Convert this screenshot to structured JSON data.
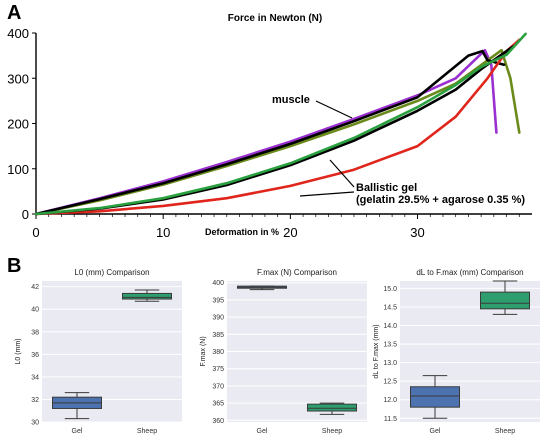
{
  "panels": {
    "a": "A",
    "b": "B"
  },
  "chart_data": [
    {
      "type": "line",
      "title": "Force in Newton (N)",
      "xlabel": "Deformation in %",
      "ylabel": "",
      "xlim": [
        0,
        39
      ],
      "ylim": [
        0,
        400
      ],
      "xticks": [
        0,
        10,
        20,
        30
      ],
      "yticks": [
        0,
        100,
        200,
        300,
        400
      ],
      "grid": false,
      "annotations": [
        "muscle",
        "Ballistic gel",
        "(gelatin  29.5% + agarose 0.35 %)"
      ],
      "series": [
        {
          "group": "muscle",
          "color": "#9b30d0",
          "points": [
            [
              0,
              0
            ],
            [
              5,
              35
            ],
            [
              10,
              72
            ],
            [
              15,
              115
            ],
            [
              20,
              160
            ],
            [
              25,
              210
            ],
            [
              30,
              262
            ],
            [
              33,
              300
            ],
            [
              35.3,
              362
            ],
            [
              35.8,
              330
            ],
            [
              36.2,
              180
            ]
          ]
        },
        {
          "group": "muscle",
          "color": "#6a8a1a",
          "points": [
            [
              0,
              0
            ],
            [
              5,
              30
            ],
            [
              10,
              65
            ],
            [
              15,
              106
            ],
            [
              20,
              150
            ],
            [
              25,
              198
            ],
            [
              30,
              250
            ],
            [
              33,
              288
            ],
            [
              36.6,
              362
            ],
            [
              37.3,
              300
            ],
            [
              38,
              180
            ]
          ]
        },
        {
          "group": "muscle",
          "color": "#000000",
          "points": [
            [
              0,
              0
            ],
            [
              5,
              33
            ],
            [
              10,
              68
            ],
            [
              15,
              110
            ],
            [
              20,
              155
            ],
            [
              25,
              205
            ],
            [
              30,
              258
            ],
            [
              34,
              350
            ],
            [
              35.1,
              360
            ],
            [
              35.5,
              340
            ],
            [
              36.8,
              330
            ]
          ]
        },
        {
          "group": "ballistic gel",
          "color": "#e0261c",
          "points": [
            [
              0,
              0
            ],
            [
              5,
              6
            ],
            [
              10,
              18
            ],
            [
              15,
              35
            ],
            [
              20,
              62
            ],
            [
              25,
              98
            ],
            [
              30,
              150
            ],
            [
              33,
              215
            ],
            [
              35.5,
              300
            ],
            [
              37,
              360
            ],
            [
              38,
              385
            ]
          ]
        },
        {
          "group": "ballistic gel",
          "color": "#000000",
          "points": [
            [
              0,
              0
            ],
            [
              5,
              12
            ],
            [
              10,
              32
            ],
            [
              15,
              64
            ],
            [
              20,
              108
            ],
            [
              25,
              162
            ],
            [
              30,
              228
            ],
            [
              33,
              275
            ],
            [
              35,
              320
            ],
            [
              36.5,
              350
            ],
            [
              37.5,
              370
            ]
          ]
        },
        {
          "group": "ballistic gel",
          "color": "#2aa040",
          "points": [
            [
              0,
              0
            ],
            [
              5,
              13
            ],
            [
              10,
              35
            ],
            [
              15,
              68
            ],
            [
              20,
              112
            ],
            [
              25,
              168
            ],
            [
              30,
              236
            ],
            [
              33,
              285
            ],
            [
              35,
              325
            ],
            [
              37,
              352
            ],
            [
              38.5,
              398
            ]
          ]
        }
      ]
    },
    {
      "type": "box",
      "title": "L0 (mm) Comparison",
      "ylabel": "L0 (mm)",
      "categories": [
        "Gel",
        "Sheep"
      ],
      "ylim": [
        30,
        42.5
      ],
      "yticks": [
        30,
        32,
        34,
        36,
        38,
        40,
        42
      ],
      "boxes": [
        {
          "name": "Gel",
          "color": "#4c72b0",
          "whislo": 30.3,
          "q1": 31.2,
          "med": 31.7,
          "q3": 32.2,
          "whishi": 32.6
        },
        {
          "name": "Sheep",
          "color": "#2e9e6e",
          "whislo": 40.7,
          "q1": 40.9,
          "med": 41.05,
          "q3": 41.4,
          "whishi": 41.7
        }
      ]
    },
    {
      "type": "box",
      "title": "F.max (N) Comparison",
      "ylabel": "F.max (N)",
      "categories": [
        "Gel",
        "Sheep"
      ],
      "ylim": [
        359.5,
        400.5
      ],
      "yticks": [
        360,
        365,
        370,
        375,
        380,
        385,
        390,
        395,
        400
      ],
      "boxes": [
        {
          "name": "Gel",
          "color": "#4c72b0",
          "whislo": 398.0,
          "q1": 398.4,
          "med": 398.7,
          "q3": 399.0,
          "whishi": 399.0
        },
        {
          "name": "Sheep",
          "color": "#2e9e6e",
          "whislo": 361.7,
          "q1": 362.7,
          "med": 363.5,
          "q3": 364.7,
          "whishi": 365.0
        }
      ]
    },
    {
      "type": "box",
      "title": "dL to F.max (mm) Comparison",
      "ylabel": "dL to F.max (mm)",
      "categories": [
        "Gel",
        "Sheep"
      ],
      "ylim": [
        11.4,
        15.2
      ],
      "yticks": [
        11.5,
        12.0,
        12.5,
        13.0,
        13.5,
        14.0,
        14.5,
        15.0
      ],
      "ytick_labels": [
        "11.5",
        "12.0",
        "12.5",
        "13.0",
        "13.5",
        "14.0",
        "14.5",
        "15.0"
      ],
      "boxes": [
        {
          "name": "Gel",
          "color": "#4c72b0",
          "whislo": 11.5,
          "q1": 11.8,
          "med": 12.1,
          "q3": 12.35,
          "whishi": 12.65
        },
        {
          "name": "Sheep",
          "color": "#2e9e6e",
          "whislo": 14.3,
          "q1": 14.45,
          "med": 14.6,
          "q3": 14.9,
          "whishi": 15.2
        }
      ]
    }
  ]
}
